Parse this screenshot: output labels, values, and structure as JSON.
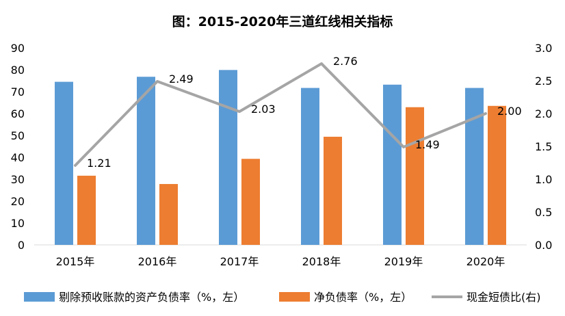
{
  "chart_data": {
    "type": "bar",
    "title": "图：2015-2020年三道红线相关指标",
    "categories": [
      "2015年",
      "2016年",
      "2017年",
      "2018年",
      "2019年",
      "2020年"
    ],
    "y_left": {
      "min": 0,
      "max": 90,
      "ticks": [
        "0",
        "10",
        "20",
        "30",
        "40",
        "50",
        "60",
        "70",
        "80",
        "90"
      ]
    },
    "y_right": {
      "min": 0,
      "max": 3.0,
      "ticks": [
        "0.0",
        "0.5",
        "1.0",
        "1.5",
        "2.0",
        "2.5",
        "3.0"
      ]
    },
    "series": [
      {
        "name": "剔除预收账款的资产负债率（%，左）",
        "type": "bar",
        "axis": "left",
        "color": "#5B9BD5",
        "values": [
          74.5,
          76.8,
          79.9,
          71.7,
          73.2,
          71.7
        ]
      },
      {
        "name": "净负债率（%，左）",
        "type": "bar",
        "axis": "left",
        "color": "#ED7D31",
        "values": [
          31.6,
          27.8,
          39.3,
          49.4,
          62.9,
          63.5
        ]
      },
      {
        "name": "现金短债比(右)",
        "type": "line",
        "axis": "right",
        "color": "#A5A5A5",
        "values": [
          1.21,
          2.49,
          2.03,
          2.76,
          1.49,
          2.0
        ],
        "labels": [
          "1.21",
          "2.49",
          "2.03",
          "2.76",
          "1.49",
          "2.00"
        ]
      }
    ],
    "grid": false,
    "legend": "bottom"
  }
}
